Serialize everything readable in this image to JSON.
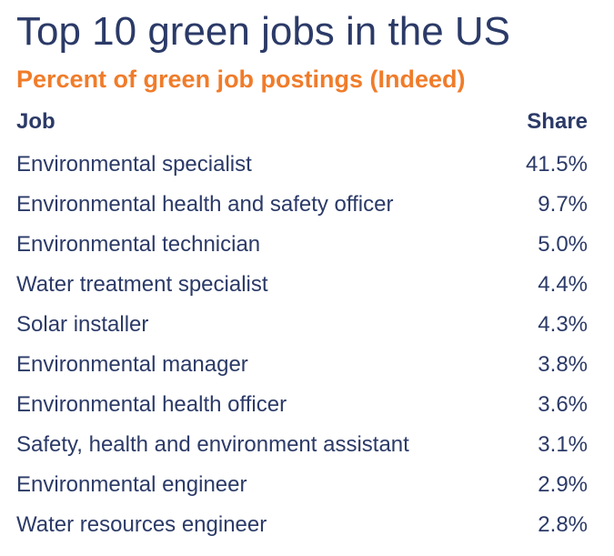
{
  "chart_data": {
    "type": "table",
    "title": "Top 10 green jobs in the US",
    "subtitle": "Percent of green job postings (Indeed)",
    "columns": [
      "Job",
      "Share"
    ],
    "rows": [
      {
        "job": "Environmental specialist",
        "share": "41.5%"
      },
      {
        "job": "Environmental health and safety officer",
        "share": "9.7%"
      },
      {
        "job": "Environmental technician",
        "share": "5.0%"
      },
      {
        "job": "Water treatment specialist",
        "share": "4.4%"
      },
      {
        "job": "Solar installer",
        "share": "4.3%"
      },
      {
        "job": "Environmental manager",
        "share": "3.8%"
      },
      {
        "job": "Environmental health officer",
        "share": "3.6%"
      },
      {
        "job": "Safety, health and environment assistant",
        "share": "3.1%"
      },
      {
        "job": "Environmental engineer",
        "share": "2.9%"
      },
      {
        "job": "Water resources engineer",
        "share": "2.8%"
      }
    ],
    "colors": {
      "text": "#2b3a67",
      "subtitle": "#f07c2a"
    }
  }
}
